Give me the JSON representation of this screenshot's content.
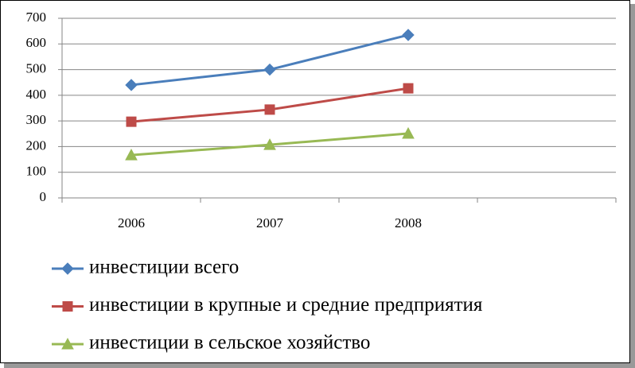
{
  "chart_data": {
    "type": "line",
    "categories": [
      "2006",
      "2007",
      "2008",
      null
    ],
    "series": [
      {
        "name": "инвестиции всего",
        "color": "#4a7ebb",
        "marker": "diamond",
        "values": [
          440,
          500,
          635,
          null
        ]
      },
      {
        "name": "инвестиции в крупные  и средние предприятия",
        "color": "#be4b48",
        "marker": "square",
        "values": [
          297,
          344,
          427,
          null
        ]
      },
      {
        "name": "инвестиции в сельское хозяйство",
        "color": "#98b954",
        "marker": "triangle",
        "values": [
          167,
          207,
          251,
          null
        ]
      }
    ],
    "ylim": [
      0,
      700
    ],
    "yticks": [
      0,
      100,
      200,
      300,
      400,
      500,
      600,
      700
    ],
    "grid": true,
    "legend": "bottom"
  }
}
